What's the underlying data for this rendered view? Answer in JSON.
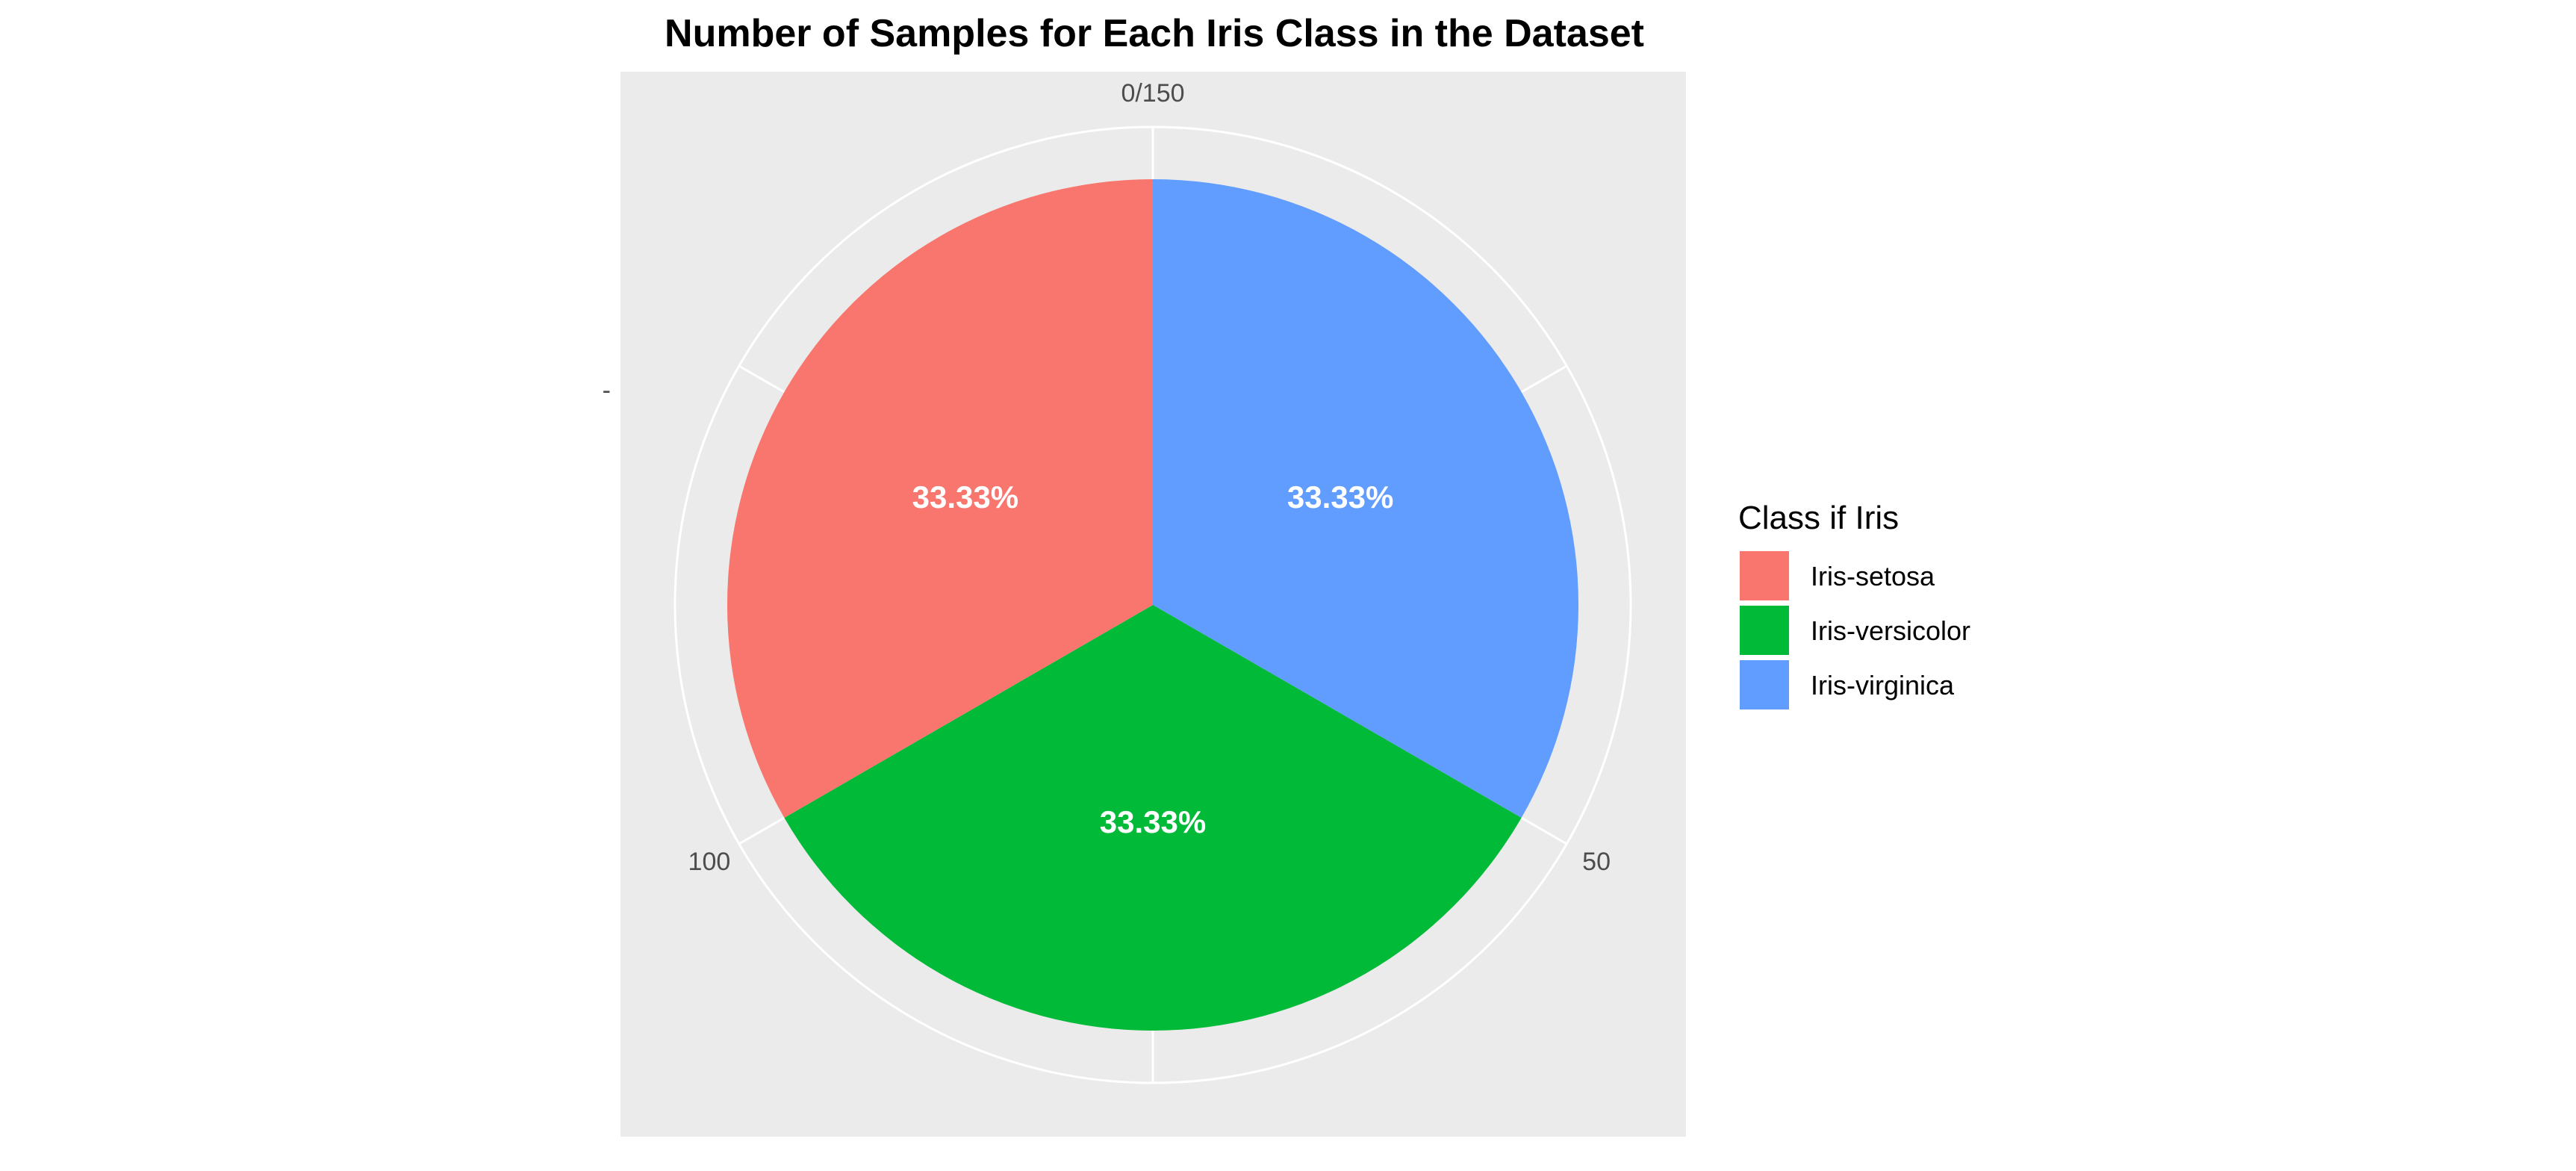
{
  "chart_data": {
    "type": "pie",
    "title": "Number of Samples for Each Iris Class in the Dataset",
    "categories": [
      "Iris-setosa",
      "Iris-versicolor",
      "Iris-virginica"
    ],
    "values": [
      50,
      50,
      50
    ],
    "total": 150,
    "data_labels": [
      "33.33%",
      "33.33%",
      "33.33%"
    ],
    "slice_order_clockwise_from_top": [
      "Iris-virginica",
      "Iris-versicolor",
      "Iris-setosa"
    ],
    "angle_ticks": [
      {
        "value": 0,
        "label": "0/150"
      },
      {
        "value": 50,
        "label": "50"
      },
      {
        "value": 100,
        "label": "100"
      }
    ],
    "y_tick_label": "-",
    "legend": {
      "title": "Class if Iris",
      "placement": "right",
      "entries": [
        "Iris-setosa",
        "Iris-versicolor",
        "Iris-virginica"
      ]
    },
    "colors": {
      "Iris-setosa": "#F8766D",
      "Iris-versicolor": "#00BA38",
      "Iris-virginica": "#619CFF",
      "panel_background": "#EBEBEB",
      "grid": "#FFFFFF"
    }
  }
}
